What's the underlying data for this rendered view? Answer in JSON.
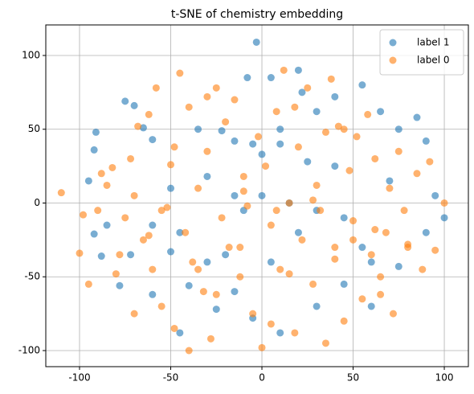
{
  "chart_data": {
    "type": "scatter",
    "title": "t-SNE of chemistry embedding",
    "xlim": [
      -118.5,
      113.2
    ],
    "ylim": [
      -110.9,
      120.7
    ],
    "xticks": [
      -100,
      -50,
      0,
      50,
      100
    ],
    "yticks": [
      -100,
      -50,
      0,
      50,
      100
    ],
    "grid": true,
    "legend": "upper right",
    "series": [
      {
        "name": "label 1",
        "color": "#1f77b4",
        "x": [
          -3,
          -91,
          -92,
          -95,
          -92,
          -88,
          -75,
          -70,
          -65,
          -60,
          -45,
          -40,
          -78,
          -72,
          -60,
          -35,
          -22,
          -15,
          -5,
          0,
          10,
          20,
          22,
          30,
          40,
          55,
          65,
          75,
          85,
          90,
          95,
          100,
          90,
          75,
          60,
          45,
          30,
          15,
          0,
          -10,
          -20,
          -30,
          -45,
          -50,
          -30,
          -15,
          -5,
          10,
          30,
          45,
          60,
          55,
          40,
          25,
          10,
          5,
          -25,
          -50,
          -60,
          -85,
          70,
          -8,
          5,
          -15,
          20
        ],
        "values": [
          109,
          48,
          36,
          15,
          -21,
          -36,
          69,
          66,
          51,
          43,
          -88,
          -56,
          -56,
          -35,
          -15,
          50,
          49,
          42,
          40,
          33,
          50,
          90,
          75,
          62,
          72,
          80,
          62,
          50,
          58,
          42,
          5,
          -10,
          -20,
          -43,
          -40,
          -10,
          -5,
          0,
          5,
          -5,
          -35,
          -40,
          -20,
          10,
          18,
          -60,
          -78,
          -88,
          -70,
          -55,
          -70,
          -30,
          25,
          28,
          40,
          -40,
          -72,
          -33,
          -62,
          -15,
          15,
          85,
          85,
          5,
          -20
        ]
      },
      {
        "name": "label 0",
        "color": "#ff7f0e",
        "x": [
          -110,
          -100,
          -98,
          -90,
          -85,
          -82,
          -80,
          -78,
          -75,
          -72,
          -70,
          -68,
          -65,
          -62,
          -60,
          -58,
          -55,
          -52,
          -50,
          -48,
          -45,
          -42,
          -40,
          -38,
          -35,
          -32,
          -30,
          -28,
          -25,
          -22,
          -20,
          -18,
          -15,
          -12,
          -10,
          -8,
          -5,
          -2,
          0,
          2,
          5,
          8,
          10,
          12,
          15,
          18,
          20,
          22,
          25,
          28,
          30,
          32,
          35,
          38,
          40,
          42,
          45,
          48,
          50,
          52,
          55,
          58,
          60,
          62,
          65,
          68,
          70,
          72,
          75,
          78,
          80,
          85,
          88,
          92,
          95,
          100,
          -95,
          -88,
          -70,
          -55,
          -40,
          -25,
          -10,
          5,
          18,
          35,
          50,
          65,
          80,
          -62,
          -48,
          -30,
          -12,
          8,
          28,
          45,
          62,
          -35,
          15,
          40
        ],
        "values": [
          7,
          -34,
          -8,
          -5,
          12,
          24,
          -48,
          -35,
          -10,
          30,
          5,
          52,
          -25,
          60,
          -45,
          78,
          -70,
          -3,
          26,
          -85,
          88,
          -20,
          65,
          -40,
          10,
          -60,
          35,
          -92,
          78,
          -10,
          55,
          -30,
          70,
          -50,
          18,
          -2,
          -75,
          45,
          -98,
          25,
          -15,
          62,
          -45,
          90,
          0,
          -88,
          38,
          -25,
          78,
          -55,
          12,
          -5,
          -95,
          84,
          -30,
          52,
          -80,
          22,
          -12,
          45,
          -65,
          60,
          -35,
          30,
          -50,
          -20,
          10,
          -75,
          35,
          -5,
          -30,
          20,
          -45,
          28,
          -32,
          0,
          -55,
          20,
          -75,
          -5,
          -100,
          -62,
          8,
          -82,
          65,
          48,
          -25,
          -62,
          -28,
          -22,
          38,
          72,
          -30,
          -5,
          2,
          50,
          -18,
          -45,
          -48,
          -38
        ]
      }
    ]
  }
}
